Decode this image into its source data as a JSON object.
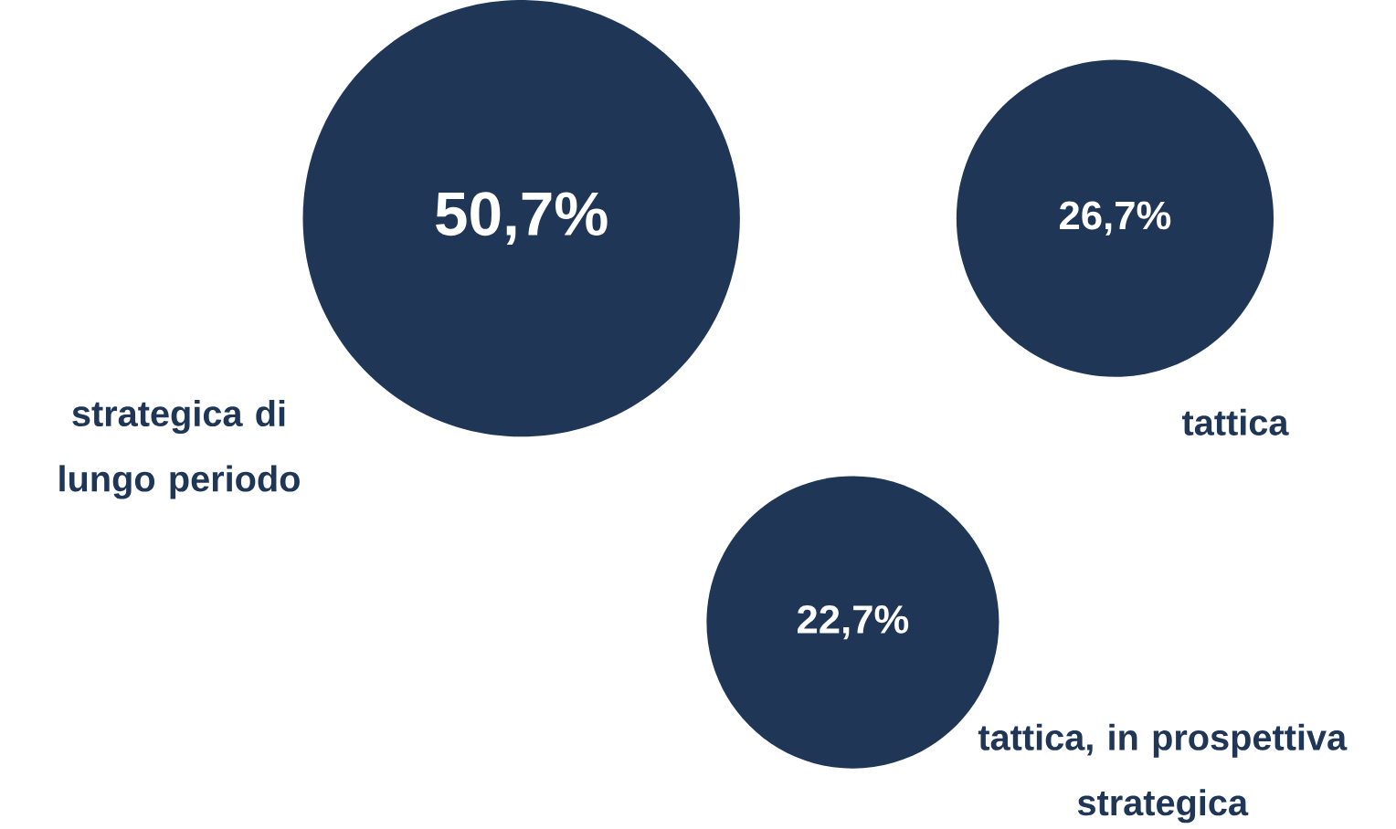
{
  "chart_data": {
    "type": "other",
    "categories": [
      "strategica di lungo periodo",
      "tattica",
      "tattica, in prospettiva  strategica"
    ],
    "values": [
      50.7,
      26.7,
      22.7
    ],
    "value_labels": [
      "50,7%",
      "26,7%",
      "22,7%"
    ],
    "color": "#1f3656"
  }
}
